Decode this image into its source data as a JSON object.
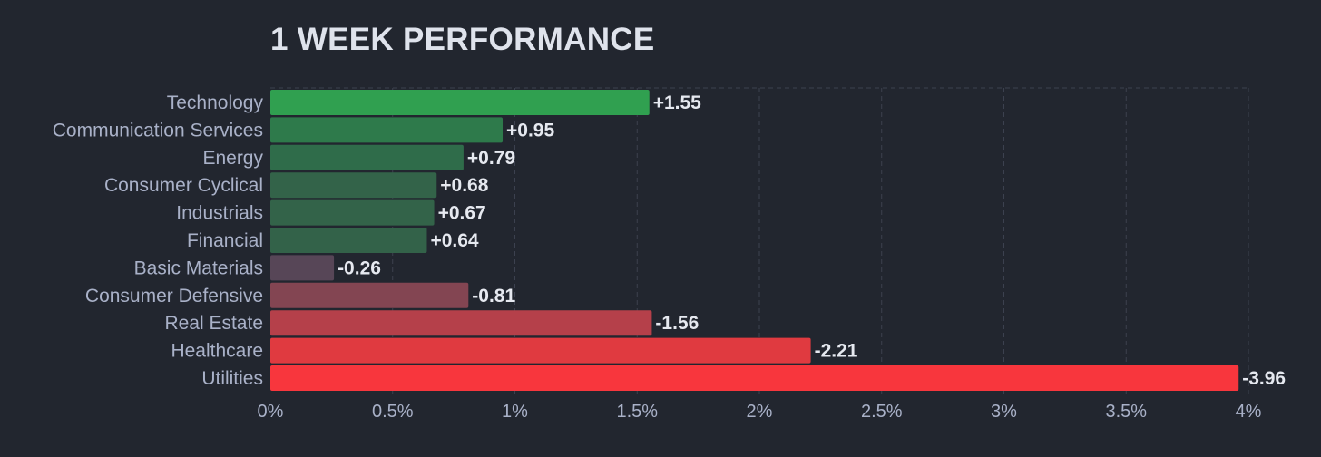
{
  "chart_data": {
    "type": "bar",
    "orientation": "horizontal",
    "title": "1 WEEK PERFORMANCE",
    "xlabel": "",
    "ylabel": "",
    "xlim": [
      0,
      4
    ],
    "grid": true,
    "categories": [
      "Technology",
      "Communication Services",
      "Energy",
      "Consumer Cyclical",
      "Industrials",
      "Financial",
      "Basic Materials",
      "Consumer Defensive",
      "Real Estate",
      "Healthcare",
      "Utilities"
    ],
    "values": [
      1.55,
      0.95,
      0.79,
      0.68,
      0.67,
      0.64,
      -0.26,
      -0.81,
      -1.56,
      -2.21,
      -3.96
    ],
    "value_labels": [
      "+1.55",
      "+0.95",
      "+0.79",
      "+0.68",
      "+0.67",
      "+0.64",
      "-0.26",
      "-0.81",
      "-1.56",
      "-2.21",
      "-3.96"
    ],
    "bar_colors": [
      "#30a050",
      "#2e7a4b",
      "#2f6c4a",
      "#336349",
      "#336349",
      "#336249",
      "#574657",
      "#834552",
      "#b5404a",
      "#e03a40",
      "#f8363d"
    ],
    "x_ticks": [
      {
        "value": 0,
        "label": "0%"
      },
      {
        "value": 0.5,
        "label": "0.5%"
      },
      {
        "value": 1,
        "label": "1%"
      },
      {
        "value": 1.5,
        "label": "1.5%"
      },
      {
        "value": 2,
        "label": "2%"
      },
      {
        "value": 2.5,
        "label": "2.5%"
      },
      {
        "value": 3,
        "label": "3%"
      },
      {
        "value": 3.5,
        "label": "3.5%"
      },
      {
        "value": 4,
        "label": "4%"
      }
    ]
  },
  "colors": {
    "background": "#22262f",
    "grid": "#3c414f",
    "title": "#dfe3ec",
    "label": "#a9b1c8",
    "value": "#e6e9f0"
  }
}
